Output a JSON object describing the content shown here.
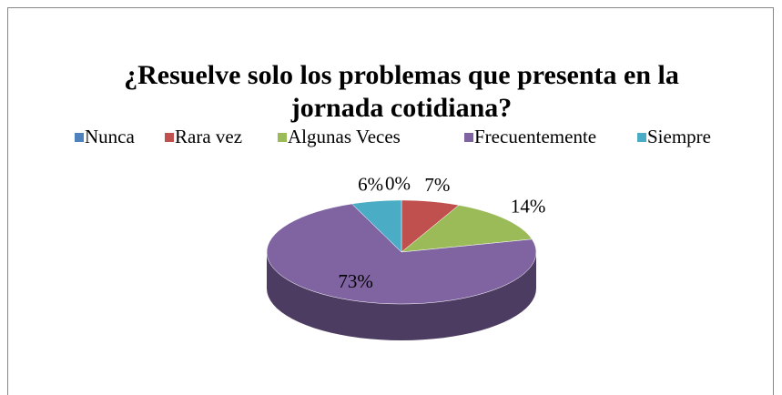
{
  "chart_data": {
    "type": "pie",
    "title": [
      "¿Resuelve solo los problemas que presenta en la",
      "jornada cotidiana?"
    ],
    "categories": [
      "Nunca",
      "Rara vez",
      "Algunas Veces",
      "Frecuentemente",
      "Siempre"
    ],
    "values": [
      0,
      7,
      14,
      73,
      6
    ],
    "value_labels": [
      "0%",
      "7%",
      "14%",
      "73%",
      "6%"
    ],
    "colors": [
      "#4f81bd",
      "#c0504d",
      "#9bbb59",
      "#8064a2",
      "#4bacc6"
    ],
    "legend": "top"
  }
}
